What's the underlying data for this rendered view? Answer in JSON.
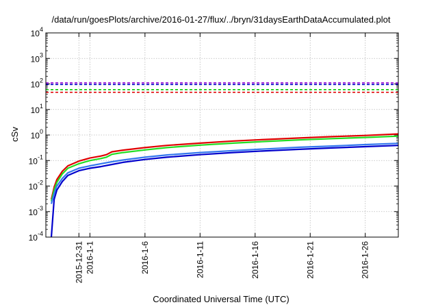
{
  "chart_data": {
    "type": "line",
    "title": "/data/run/goesPlots/archive/2016-01-27/flux/../bryn/31daysEarthDataAccumulated.plot",
    "xlabel": "Coordinated Universal Time (UTC)",
    "ylabel": "cSv",
    "yscale": "log",
    "ylim": [
      0.0001,
      10000
    ],
    "xlim": [
      "2015-12-28",
      "2016-01-29"
    ],
    "y_ticks": [
      {
        "value": 0.0001,
        "base": "10",
        "exp": "-4"
      },
      {
        "value": 0.001,
        "base": "10",
        "exp": "-3"
      },
      {
        "value": 0.01,
        "base": "10",
        "exp": "-2"
      },
      {
        "value": 0.1,
        "base": "10",
        "exp": "-1"
      },
      {
        "value": 1,
        "base": "10",
        "exp": "0"
      },
      {
        "value": 10,
        "base": "10",
        "exp": "1"
      },
      {
        "value": 100,
        "base": "10",
        "exp": "2"
      },
      {
        "value": 1000,
        "base": "10",
        "exp": "3"
      },
      {
        "value": 10000,
        "base": "10",
        "exp": "4"
      }
    ],
    "x_ticks": [
      {
        "date": "2015-12-31",
        "label": "2015-12-31"
      },
      {
        "date": "2016-01-01",
        "label": "2016-1-1"
      },
      {
        "date": "2016-01-06",
        "label": "2016-1-6"
      },
      {
        "date": "2016-01-11",
        "label": "2016-1-11"
      },
      {
        "date": "2016-01-16",
        "label": "2016-1-16"
      },
      {
        "date": "2016-01-21",
        "label": "2016-1-21"
      },
      {
        "date": "2016-01-26",
        "label": "2016-1-26"
      }
    ],
    "grid": true,
    "legend": "none",
    "thresholds": [
      {
        "value": 110,
        "color": "#9400d3",
        "style": "dashed"
      },
      {
        "value": 95,
        "color": "#0000cc",
        "style": "dashed"
      },
      {
        "value": 60,
        "color": "#00cc00",
        "style": "dashed"
      },
      {
        "value": 47,
        "color": "#dd0000",
        "style": "dashed"
      }
    ],
    "series": [
      {
        "color": "#e00000",
        "x": [
          "2015-12-28T12:00",
          "2015-12-28T18:00",
          "2015-12-29",
          "2015-12-29T12:00",
          "2015-12-30",
          "2015-12-31",
          "2016-01-01",
          "2016-01-02",
          "2016-01-02T12:00",
          "2016-01-03",
          "2016-01-04",
          "2016-01-06",
          "2016-01-08",
          "2016-01-11",
          "2016-01-14",
          "2016-01-17",
          "2016-01-20",
          "2016-01-23",
          "2016-01-26",
          "2016-01-29"
        ],
        "values": [
          0.003,
          0.009,
          0.018,
          0.038,
          0.062,
          0.095,
          0.125,
          0.15,
          0.17,
          0.22,
          0.255,
          0.32,
          0.39,
          0.48,
          0.58,
          0.67,
          0.76,
          0.86,
          0.96,
          1.1
        ]
      },
      {
        "color": "#22dd22",
        "x": [
          "2015-12-28T12:00",
          "2015-12-28T18:00",
          "2015-12-29",
          "2015-12-29T12:00",
          "2015-12-30",
          "2015-12-31",
          "2016-01-01",
          "2016-01-02",
          "2016-01-02T12:00",
          "2016-01-03",
          "2016-01-04",
          "2016-01-06",
          "2016-01-08",
          "2016-01-11",
          "2016-01-14",
          "2016-01-17",
          "2016-01-20",
          "2016-01-23",
          "2016-01-26",
          "2016-01-29"
        ],
        "values": [
          0.0025,
          0.007,
          0.014,
          0.03,
          0.05,
          0.075,
          0.1,
          0.12,
          0.135,
          0.175,
          0.205,
          0.26,
          0.32,
          0.4,
          0.48,
          0.56,
          0.64,
          0.72,
          0.8,
          0.9
        ]
      },
      {
        "color": "#3377ee",
        "x": [
          "2015-12-28T12:00",
          "2015-12-28T18:00",
          "2015-12-29",
          "2015-12-29T12:00",
          "2015-12-30",
          "2015-12-31",
          "2016-01-01",
          "2016-01-02",
          "2016-01-03",
          "2016-01-04",
          "2016-01-06",
          "2016-01-08",
          "2016-01-11",
          "2016-01-14",
          "2016-01-17",
          "2016-01-20",
          "2016-01-23",
          "2016-01-26",
          "2016-01-29"
        ],
        "values": [
          0.002,
          0.005,
          0.01,
          0.02,
          0.033,
          0.05,
          0.062,
          0.075,
          0.09,
          0.105,
          0.135,
          0.165,
          0.205,
          0.245,
          0.285,
          0.33,
          0.37,
          0.42,
          0.47
        ]
      },
      {
        "color": "#0000cc",
        "x": [
          "2015-12-28T12:00",
          "2015-12-28T18:00",
          "2015-12-29",
          "2015-12-29T12:00",
          "2015-12-30",
          "2015-12-31",
          "2016-01-01",
          "2016-01-02",
          "2016-01-03",
          "2016-01-04",
          "2016-01-06",
          "2016-01-08",
          "2016-01-11",
          "2016-01-14",
          "2016-01-17",
          "2016-01-20",
          "2016-01-23",
          "2016-01-26",
          "2016-01-29"
        ],
        "values": [
          0.0001,
          0.003,
          0.007,
          0.015,
          0.026,
          0.04,
          0.05,
          0.058,
          0.07,
          0.085,
          0.11,
          0.135,
          0.17,
          0.205,
          0.24,
          0.275,
          0.31,
          0.35,
          0.39
        ]
      }
    ]
  }
}
